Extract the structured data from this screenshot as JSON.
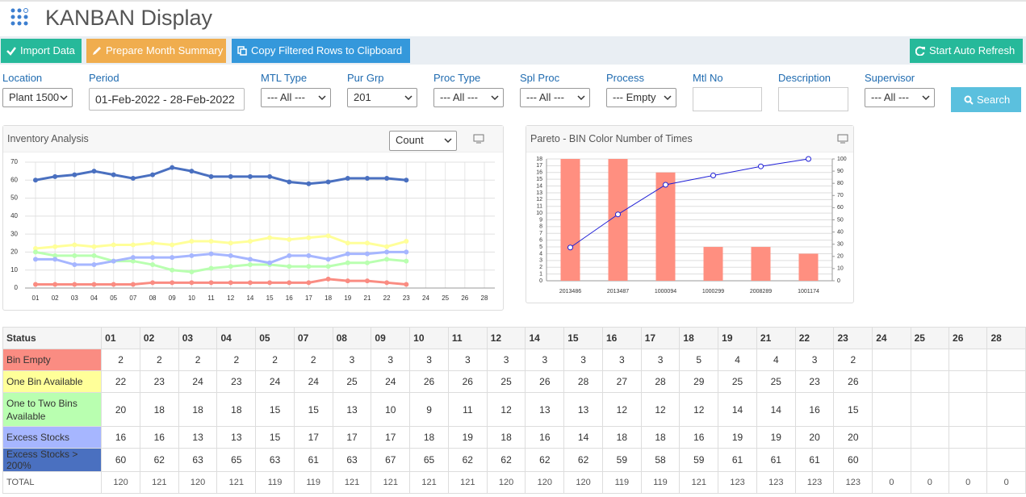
{
  "header": {
    "title": "KANBAN Display"
  },
  "toolbar": {
    "import": "Import Data",
    "summary": "Prepare Month Summary",
    "copy": "Copy Filtered Rows to Clipboard",
    "refresh": "Start Auto Refresh"
  },
  "filters": [
    {
      "label": "Location",
      "value": "Plant 1500"
    },
    {
      "label": "Period",
      "value": "01-Feb-2022 - 28-Feb-2022"
    },
    {
      "label": "MTL Type",
      "value": "--- All ---"
    },
    {
      "label": "Pur Grp",
      "value": "201"
    },
    {
      "label": "Proc Type",
      "value": "--- All ---"
    },
    {
      "label": "Spl Proc",
      "value": "--- All ---"
    },
    {
      "label": "Process",
      "value": "--- Empty"
    },
    {
      "label": "Mtl No"
    },
    {
      "label": "Description"
    },
    {
      "label": "Supervisor",
      "value": "--- All ---"
    }
  ],
  "search": "Search",
  "chart_data": [
    {
      "type": "line",
      "title": "Inventory Analysis",
      "control": "Count",
      "categories": [
        "01",
        "02",
        "03",
        "04",
        "05",
        "07",
        "08",
        "09",
        "10",
        "11",
        "12",
        "14",
        "15",
        "16",
        "17",
        "18",
        "19",
        "21",
        "22",
        "23",
        "24",
        "25",
        "26",
        "28"
      ],
      "series": [
        {
          "name": "Bin Empty",
          "color": "#fa8c82",
          "values": [
            2,
            2,
            2,
            2,
            2,
            2,
            3,
            3,
            3,
            3,
            3,
            3,
            3,
            3,
            3,
            5,
            4,
            4,
            3,
            2,
            null,
            null,
            null,
            null
          ]
        },
        {
          "name": "One Bin Available",
          "color": "#ffff99",
          "values": [
            22,
            23,
            24,
            23,
            24,
            24,
            25,
            24,
            26,
            26,
            25,
            26,
            28,
            27,
            28,
            29,
            25,
            25,
            23,
            26,
            null,
            null,
            null,
            null
          ]
        },
        {
          "name": "One to Two Bins Available",
          "color": "#b9ffb0",
          "values": [
            20,
            18,
            18,
            18,
            15,
            15,
            13,
            10,
            9,
            11,
            12,
            13,
            13,
            12,
            12,
            12,
            14,
            14,
            16,
            15,
            null,
            null,
            null,
            null
          ]
        },
        {
          "name": "Excess Stocks",
          "color": "#a6b6ff",
          "values": [
            16,
            16,
            13,
            13,
            15,
            17,
            17,
            17,
            18,
            19,
            18,
            16,
            14,
            18,
            18,
            16,
            19,
            19,
            20,
            20,
            null,
            null,
            null,
            null
          ]
        },
        {
          "name": "Excess Stocks > 200%",
          "color": "#4a70c0",
          "values": [
            60,
            62,
            63,
            65,
            63,
            61,
            63,
            67,
            65,
            62,
            62,
            62,
            62,
            59,
            58,
            59,
            61,
            61,
            61,
            60,
            null,
            null,
            null,
            null
          ]
        }
      ],
      "ylim": [
        0,
        70
      ],
      "yticks": [
        0,
        10,
        20,
        30,
        40,
        50,
        60,
        70
      ],
      "grid": true
    },
    {
      "type": "pareto",
      "title": "Pareto - BIN Color Number of Times",
      "categories": [
        "2013486",
        "2013487",
        "1000094",
        "1000299",
        "2008289",
        "1001174"
      ],
      "series": [
        {
          "color": "#ff8f80",
          "values": [
            18,
            18,
            16,
            5,
            5,
            4
          ]
        },
        {
          "color": "#1f1fd6",
          "values": [
            27.3,
            54.5,
            78.8,
            86.4,
            93.9,
            100
          ],
          "axis": "y2"
        }
      ],
      "ylim": [
        0,
        18
      ],
      "yticks": [
        0,
        1,
        2,
        3,
        4,
        5,
        6,
        7,
        8,
        9,
        10,
        11,
        12,
        13,
        14,
        15,
        16,
        17,
        18
      ],
      "y2lim": [
        0,
        100
      ],
      "y2ticks": [
        0,
        10,
        20,
        30,
        40,
        50,
        60,
        70,
        80,
        90,
        100
      ],
      "grid": true
    }
  ],
  "table": {
    "header": "Status",
    "total_label": "TOTAL",
    "totals": [
      120,
      121,
      120,
      121,
      119,
      119,
      121,
      121,
      121,
      121,
      120,
      120,
      120,
      119,
      119,
      121,
      123,
      123,
      123,
      123,
      0,
      0,
      0,
      0
    ]
  }
}
